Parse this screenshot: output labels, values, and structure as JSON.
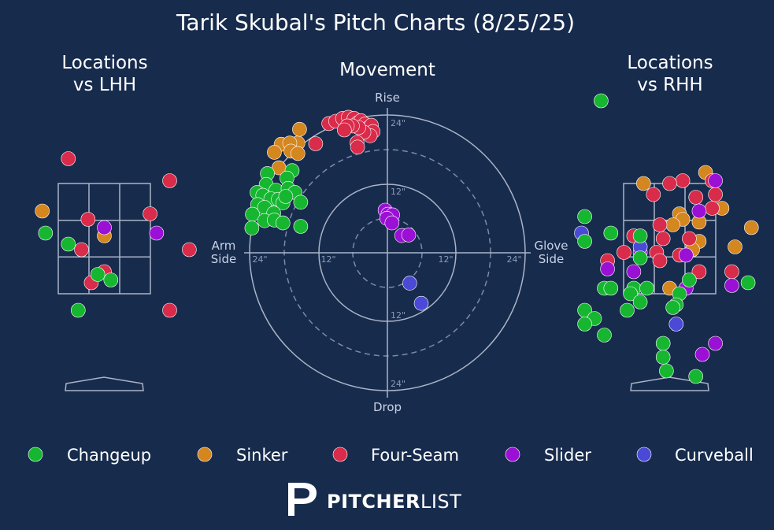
{
  "title": "Tarik Skubal's Pitch Charts (8/25/25)",
  "logo": {
    "brand_bold": "PITCHER",
    "brand_light": "LIST"
  },
  "colors": {
    "background": "#172b4d",
    "Changeup": "#17b631",
    "Sinker": "#d4861f",
    "Four-Seam": "#d92b4a",
    "Slider": "#9a10d4",
    "Curveball": "#4b4ad6"
  },
  "legend": [
    "Changeup",
    "Sinker",
    "Four-Seam",
    "Slider",
    "Curveball"
  ],
  "chart_data": [
    {
      "type": "scatter",
      "title_line1": "Locations",
      "title_line2": "vs LHH",
      "points": [
        {
          "pitch": "Four-Seam",
          "x": -1.85,
          "y": 3.75
        },
        {
          "pitch": "Four-Seam",
          "x": -0.55,
          "y": 3.95
        },
        {
          "pitch": "Four-Seam",
          "x": 1.0,
          "y": 3.55
        },
        {
          "pitch": "Four-Seam",
          "x": 0.7,
          "y": 2.95
        },
        {
          "pitch": "Four-Seam",
          "x": -0.25,
          "y": 2.85
        },
        {
          "pitch": "Four-Seam",
          "x": -0.35,
          "y": 2.3
        },
        {
          "pitch": "Four-Seam",
          "x": 1.3,
          "y": 2.3
        },
        {
          "pitch": "Four-Seam",
          "x": 0.0,
          "y": 1.9
        },
        {
          "pitch": "Four-Seam",
          "x": -0.2,
          "y": 1.7
        },
        {
          "pitch": "Four-Seam",
          "x": 1.0,
          "y": 1.2
        },
        {
          "pitch": "Sinker",
          "x": -0.95,
          "y": 3.0
        },
        {
          "pitch": "Sinker",
          "x": 0.0,
          "y": 2.55
        },
        {
          "pitch": "Slider",
          "x": 0.0,
          "y": 2.7
        },
        {
          "pitch": "Slider",
          "x": 0.8,
          "y": 2.6
        },
        {
          "pitch": "Slider",
          "x": 1.45,
          "y": 0.45
        },
        {
          "pitch": "Changeup",
          "x": -0.9,
          "y": 2.6
        },
        {
          "pitch": "Changeup",
          "x": -0.55,
          "y": 2.4
        },
        {
          "pitch": "Changeup",
          "x": -0.1,
          "y": 1.85
        },
        {
          "pitch": "Changeup",
          "x": 0.1,
          "y": 1.75
        },
        {
          "pitch": "Changeup",
          "x": -0.4,
          "y": 1.2
        }
      ]
    },
    {
      "type": "scatter",
      "title": "Movement",
      "labels": {
        "top": "Rise",
        "bottom": "Drop",
        "left_l1": "Arm",
        "left_l2": "Side",
        "right_l1": "Glove",
        "right_l2": "Side"
      },
      "ring_labels": [
        "24\"",
        "12\"",
        "12\"",
        "24\"",
        "24\"",
        "12\"",
        "12\"",
        "24\""
      ],
      "xlim": [
        -30,
        30
      ],
      "ylim": [
        -30,
        30
      ],
      "points": [
        {
          "pitch": "Four-Seam",
          "x": -10.2,
          "y": 22.5
        },
        {
          "pitch": "Four-Seam",
          "x": -9.0,
          "y": 22.9
        },
        {
          "pitch": "Four-Seam",
          "x": -7.8,
          "y": 23.4
        },
        {
          "pitch": "Four-Seam",
          "x": -6.8,
          "y": 23.6
        },
        {
          "pitch": "Four-Seam",
          "x": -5.8,
          "y": 23.4
        },
        {
          "pitch": "Four-Seam",
          "x": -5.2,
          "y": 22.6
        },
        {
          "pitch": "Four-Seam",
          "x": -4.6,
          "y": 23.0
        },
        {
          "pitch": "Four-Seam",
          "x": -3.9,
          "y": 22.4
        },
        {
          "pitch": "Four-Seam",
          "x": -3.4,
          "y": 21.7
        },
        {
          "pitch": "Four-Seam",
          "x": -2.8,
          "y": 22.2
        },
        {
          "pitch": "Four-Seam",
          "x": -2.5,
          "y": 21.1
        },
        {
          "pitch": "Four-Seam",
          "x": -3.0,
          "y": 20.4
        },
        {
          "pitch": "Four-Seam",
          "x": -4.1,
          "y": 21.0
        },
        {
          "pitch": "Four-Seam",
          "x": -5.0,
          "y": 21.8
        },
        {
          "pitch": "Four-Seam",
          "x": -6.1,
          "y": 22.1
        },
        {
          "pitch": "Four-Seam",
          "x": -7.0,
          "y": 22.1
        },
        {
          "pitch": "Four-Seam",
          "x": -7.5,
          "y": 21.4
        },
        {
          "pitch": "Four-Seam",
          "x": -5.3,
          "y": 19.2
        },
        {
          "pitch": "Four-Seam",
          "x": -5.2,
          "y": 18.4
        },
        {
          "pitch": "Four-Seam",
          "x": -12.5,
          "y": 19.0
        },
        {
          "pitch": "Sinker",
          "x": -15.6,
          "y": 19.1
        },
        {
          "pitch": "Sinker",
          "x": -15.3,
          "y": 21.5
        },
        {
          "pitch": "Sinker",
          "x": -18.5,
          "y": 18.9
        },
        {
          "pitch": "Sinker",
          "x": -17.0,
          "y": 19.1
        },
        {
          "pitch": "Sinker",
          "x": -19.7,
          "y": 17.5
        },
        {
          "pitch": "Sinker",
          "x": -18.9,
          "y": 14.8
        },
        {
          "pitch": "Sinker",
          "x": -16.8,
          "y": 17.7
        },
        {
          "pitch": "Sinker",
          "x": -15.6,
          "y": 17.3
        },
        {
          "pitch": "Changeup",
          "x": -16.6,
          "y": 14.3
        },
        {
          "pitch": "Changeup",
          "x": -17.5,
          "y": 13.0
        },
        {
          "pitch": "Changeup",
          "x": -20.9,
          "y": 13.8
        },
        {
          "pitch": "Changeup",
          "x": -21.1,
          "y": 11.9
        },
        {
          "pitch": "Changeup",
          "x": -19.4,
          "y": 10.9
        },
        {
          "pitch": "Changeup",
          "x": -17.3,
          "y": 11.2
        },
        {
          "pitch": "Changeup",
          "x": -16.1,
          "y": 10.5
        },
        {
          "pitch": "Changeup",
          "x": -22.7,
          "y": 10.5
        },
        {
          "pitch": "Changeup",
          "x": -21.7,
          "y": 10.0
        },
        {
          "pitch": "Changeup",
          "x": -20.3,
          "y": 9.4
        },
        {
          "pitch": "Changeup",
          "x": -19.0,
          "y": 9.3
        },
        {
          "pitch": "Changeup",
          "x": -18.2,
          "y": 8.7
        },
        {
          "pitch": "Changeup",
          "x": -17.7,
          "y": 9.8
        },
        {
          "pitch": "Changeup",
          "x": -15.1,
          "y": 8.8
        },
        {
          "pitch": "Changeup",
          "x": -22.6,
          "y": 8.4
        },
        {
          "pitch": "Changeup",
          "x": -21.4,
          "y": 7.9
        },
        {
          "pitch": "Changeup",
          "x": -19.8,
          "y": 6.9
        },
        {
          "pitch": "Changeup",
          "x": -23.5,
          "y": 6.7
        },
        {
          "pitch": "Changeup",
          "x": -21.4,
          "y": 5.6
        },
        {
          "pitch": "Changeup",
          "x": -19.7,
          "y": 5.7
        },
        {
          "pitch": "Changeup",
          "x": -18.2,
          "y": 5.2
        },
        {
          "pitch": "Changeup",
          "x": -15.1,
          "y": 4.6
        },
        {
          "pitch": "Changeup",
          "x": -23.6,
          "y": 4.3
        },
        {
          "pitch": "Slider",
          "x": -0.4,
          "y": 7.4
        },
        {
          "pitch": "Slider",
          "x": 0.1,
          "y": 6.7
        },
        {
          "pitch": "Slider",
          "x": 0.9,
          "y": 6.6
        },
        {
          "pitch": "Slider",
          "x": -0.1,
          "y": 6.0
        },
        {
          "pitch": "Slider",
          "x": 0.8,
          "y": 5.2
        },
        {
          "pitch": "Slider",
          "x": 2.5,
          "y": 3.0
        },
        {
          "pitch": "Slider",
          "x": 3.7,
          "y": 3.1
        },
        {
          "pitch": "Curveball",
          "x": 3.9,
          "y": -5.3
        },
        {
          "pitch": "Curveball",
          "x": 5.9,
          "y": -8.8
        }
      ]
    },
    {
      "type": "scatter",
      "title_line1": "Locations",
      "title_line2": "vs RHH",
      "points": [
        {
          "pitch": "Changeup",
          "x": -1.05,
          "y": 5.0
        },
        {
          "pitch": "Sinker",
          "x": 0.55,
          "y": 3.7
        },
        {
          "pitch": "Sinker",
          "x": -0.4,
          "y": 3.5
        },
        {
          "pitch": "Sinker",
          "x": 0.15,
          "y": 2.95
        },
        {
          "pitch": "Sinker",
          "x": 0.2,
          "y": 2.85
        },
        {
          "pitch": "Sinker",
          "x": 0.05,
          "y": 2.75
        },
        {
          "pitch": "Sinker",
          "x": 0.8,
          "y": 3.05
        },
        {
          "pitch": "Sinker",
          "x": 0.45,
          "y": 2.8
        },
        {
          "pitch": "Sinker",
          "x": 1.25,
          "y": 2.7
        },
        {
          "pitch": "Sinker",
          "x": 0.45,
          "y": 2.45
        },
        {
          "pitch": "Sinker",
          "x": 1.0,
          "y": 2.35
        },
        {
          "pitch": "Sinker",
          "x": 0.35,
          "y": 2.3
        },
        {
          "pitch": "Sinker",
          "x": 0.0,
          "y": 1.6
        },
        {
          "pitch": "Four-Seam",
          "x": 0.2,
          "y": 3.55
        },
        {
          "pitch": "Four-Seam",
          "x": 0.0,
          "y": 3.5
        },
        {
          "pitch": "Four-Seam",
          "x": 0.65,
          "y": 3.55
        },
        {
          "pitch": "Four-Seam",
          "x": -0.25,
          "y": 3.3
        },
        {
          "pitch": "Four-Seam",
          "x": 0.4,
          "y": 3.25
        },
        {
          "pitch": "Four-Seam",
          "x": 0.7,
          "y": 3.3
        },
        {
          "pitch": "Four-Seam",
          "x": 0.65,
          "y": 3.05
        },
        {
          "pitch": "Four-Seam",
          "x": -0.15,
          "y": 2.75
        },
        {
          "pitch": "Four-Seam",
          "x": -0.55,
          "y": 2.55
        },
        {
          "pitch": "Four-Seam",
          "x": -0.1,
          "y": 2.5
        },
        {
          "pitch": "Four-Seam",
          "x": 0.3,
          "y": 2.5
        },
        {
          "pitch": "Four-Seam",
          "x": -0.2,
          "y": 2.25
        },
        {
          "pitch": "Four-Seam",
          "x": 0.15,
          "y": 2.2
        },
        {
          "pitch": "Four-Seam",
          "x": -0.15,
          "y": 2.1
        },
        {
          "pitch": "Four-Seam",
          "x": -0.95,
          "y": 2.1
        },
        {
          "pitch": "Four-Seam",
          "x": 0.45,
          "y": 1.9
        },
        {
          "pitch": "Four-Seam",
          "x": 0.95,
          "y": 1.9
        },
        {
          "pitch": "Four-Seam",
          "x": 1.55,
          "y": 2.55
        },
        {
          "pitch": "Four-Seam",
          "x": -0.7,
          "y": 2.25
        },
        {
          "pitch": "Slider",
          "x": 0.7,
          "y": 3.55
        },
        {
          "pitch": "Slider",
          "x": 0.45,
          "y": 3.0
        },
        {
          "pitch": "Slider",
          "x": -0.45,
          "y": 2.25
        },
        {
          "pitch": "Slider",
          "x": 0.25,
          "y": 2.2
        },
        {
          "pitch": "Slider",
          "x": -0.95,
          "y": 1.95
        },
        {
          "pitch": "Slider",
          "x": -0.55,
          "y": 1.9
        },
        {
          "pitch": "Slider",
          "x": 1.45,
          "y": 1.95
        },
        {
          "pitch": "Slider",
          "x": 0.25,
          "y": 1.6
        },
        {
          "pitch": "Slider",
          "x": 0.95,
          "y": 1.65
        },
        {
          "pitch": "Slider",
          "x": 0.7,
          "y": 0.6
        },
        {
          "pitch": "Slider",
          "x": 0.5,
          "y": 0.4
        },
        {
          "pitch": "Curveball",
          "x": -1.35,
          "y": 2.6
        },
        {
          "pitch": "Curveball",
          "x": -0.45,
          "y": 2.35
        },
        {
          "pitch": "Curveball",
          "x": 0.1,
          "y": 0.95
        },
        {
          "pitch": "Changeup",
          "x": -1.3,
          "y": 2.9
        },
        {
          "pitch": "Changeup",
          "x": -1.8,
          "y": 2.65
        },
        {
          "pitch": "Changeup",
          "x": -0.9,
          "y": 2.6
        },
        {
          "pitch": "Changeup",
          "x": -0.45,
          "y": 2.55
        },
        {
          "pitch": "Changeup",
          "x": -1.3,
          "y": 2.45
        },
        {
          "pitch": "Changeup",
          "x": -0.45,
          "y": 2.15
        },
        {
          "pitch": "Changeup",
          "x": 0.3,
          "y": 1.75
        },
        {
          "pitch": "Changeup",
          "x": 1.2,
          "y": 1.7
        },
        {
          "pitch": "Changeup",
          "x": -1.0,
          "y": 1.6
        },
        {
          "pitch": "Changeup",
          "x": -0.9,
          "y": 1.6
        },
        {
          "pitch": "Changeup",
          "x": -0.55,
          "y": 1.6
        },
        {
          "pitch": "Changeup",
          "x": -0.6,
          "y": 1.5
        },
        {
          "pitch": "Changeup",
          "x": -0.35,
          "y": 1.6
        },
        {
          "pitch": "Changeup",
          "x": 0.15,
          "y": 1.5
        },
        {
          "pitch": "Changeup",
          "x": -0.45,
          "y": 1.35
        },
        {
          "pitch": "Changeup",
          "x": 0.1,
          "y": 1.3
        },
        {
          "pitch": "Changeup",
          "x": 0.05,
          "y": 1.25
        },
        {
          "pitch": "Changeup",
          "x": -1.8,
          "y": 1.5
        },
        {
          "pitch": "Changeup",
          "x": -1.3,
          "y": 1.2
        },
        {
          "pitch": "Changeup",
          "x": -1.15,
          "y": 1.05
        },
        {
          "pitch": "Changeup",
          "x": -0.65,
          "y": 1.2
        },
        {
          "pitch": "Changeup",
          "x": -1.55,
          "y": 0.85
        },
        {
          "pitch": "Changeup",
          "x": -1.3,
          "y": 0.95
        },
        {
          "pitch": "Changeup",
          "x": -1.0,
          "y": 0.75
        },
        {
          "pitch": "Changeup",
          "x": -0.1,
          "y": 0.6
        },
        {
          "pitch": "Changeup",
          "x": -0.1,
          "y": 0.35
        },
        {
          "pitch": "Changeup",
          "x": -0.05,
          "y": 0.1
        },
        {
          "pitch": "Changeup",
          "x": 0.4,
          "y": 0.0
        }
      ]
    }
  ]
}
